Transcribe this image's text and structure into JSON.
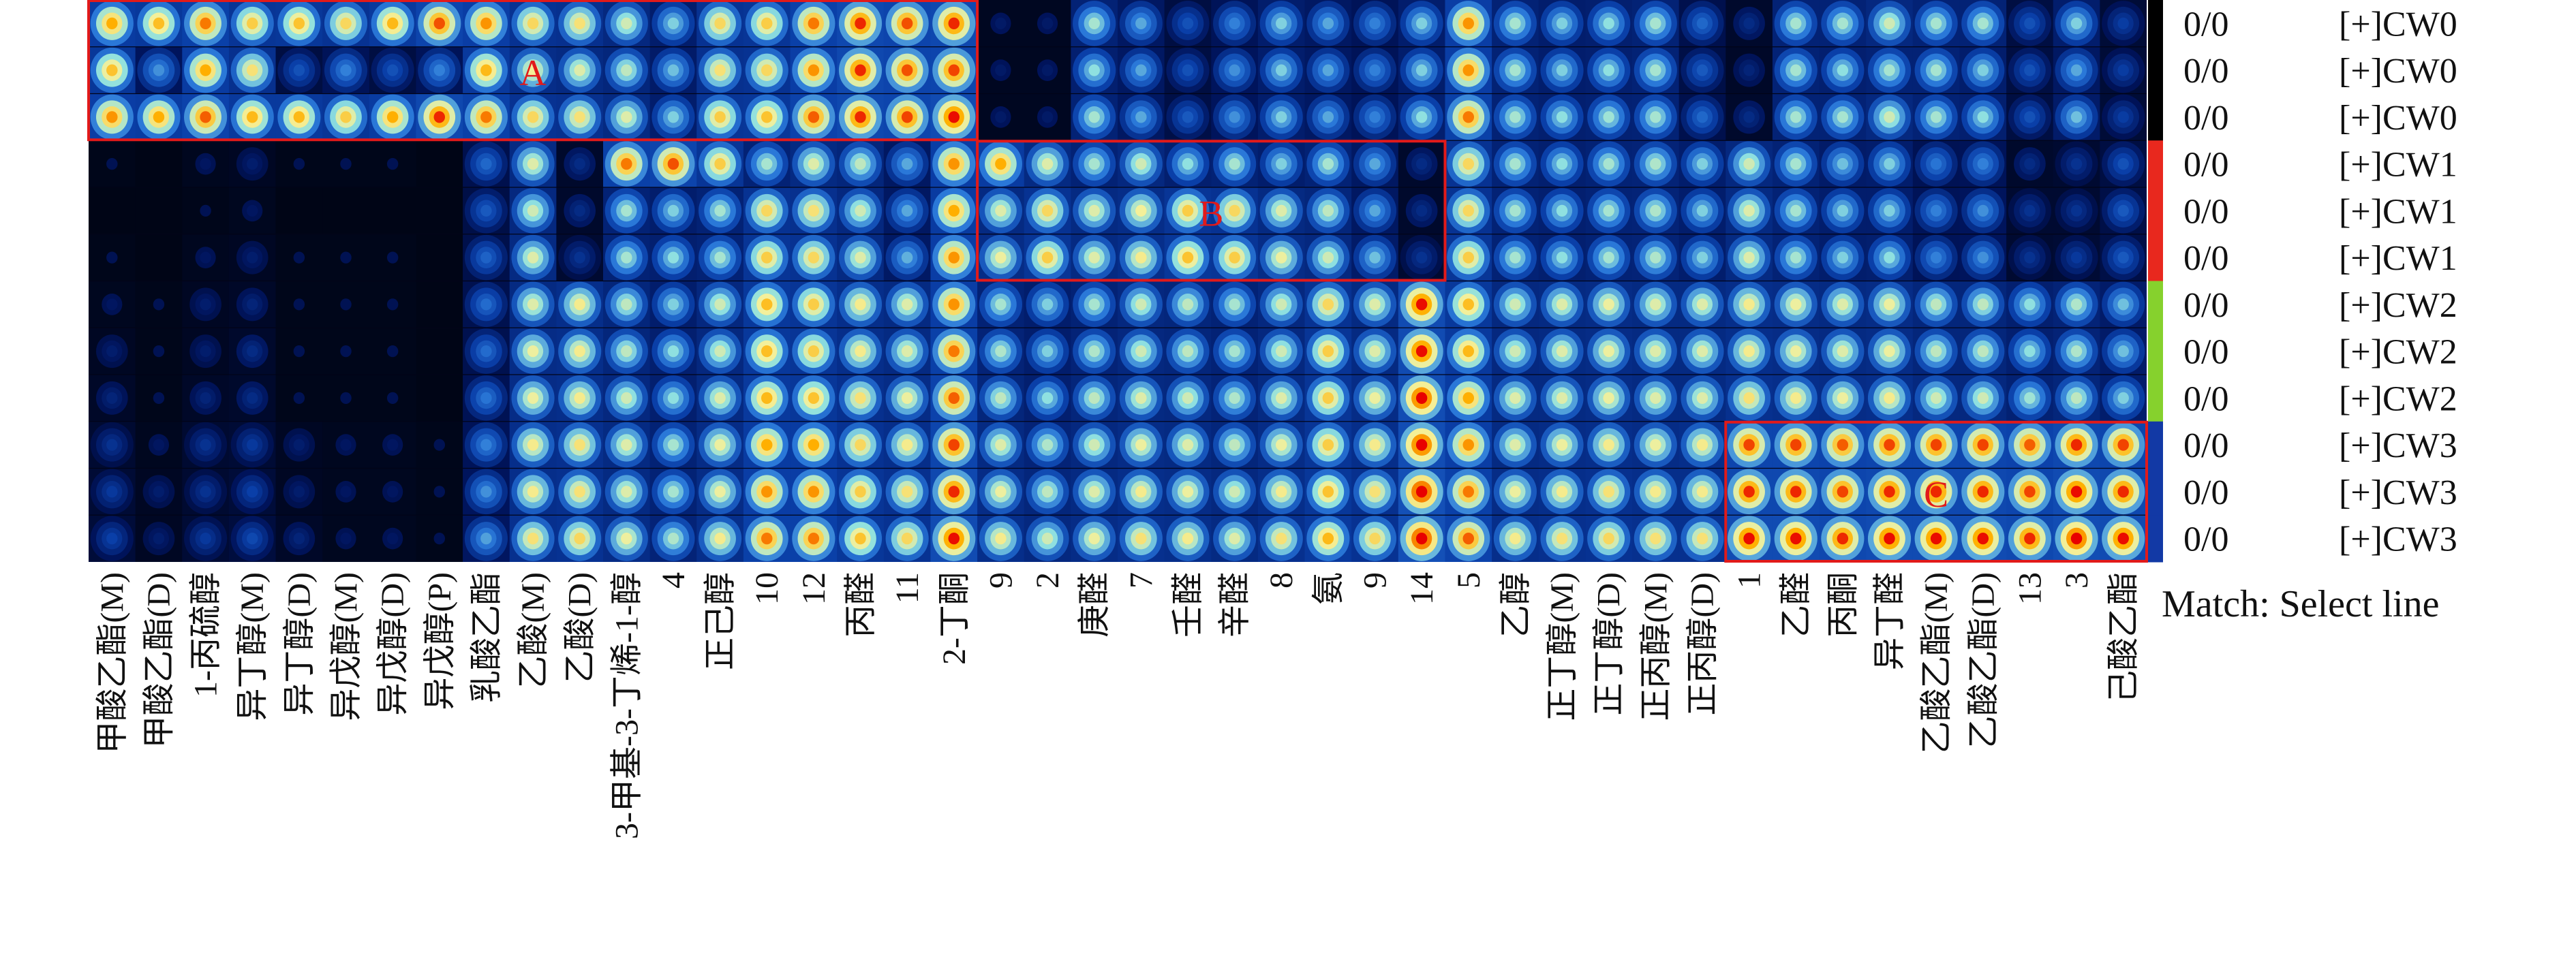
{
  "colors": {
    "background": "#000000",
    "colormap": [
      "#000000",
      "#00135a",
      "#0a3fa8",
      "#2a78d8",
      "#8fe0e0",
      "#f4f09a",
      "#ffb000",
      "#e80000"
    ],
    "highlight_box": "#e21a1a",
    "group_bars": [
      "#000000",
      "#e8281e",
      "#86d12d",
      "#1239a5"
    ]
  },
  "chart_data": {
    "type": "heatmap",
    "description_note": "GC-IMS gallery plot: rows = samples, columns = volatile compounds",
    "columns": [
      "甲酸乙酯(M)",
      "甲酸乙酯(D)",
      "1-丙硫醇",
      "异丁醇(M)",
      "异丁醇(D)",
      "异戊醇(M)",
      "异戊醇(D)",
      "异戊醇(P)",
      "乳酸乙酯",
      "乙酸(M)",
      "乙酸(D)",
      "3-甲基-3-丁烯-1-醇",
      "4",
      "正己醇",
      "10",
      "12",
      "丙醛",
      "11",
      "2-丁酮",
      "9",
      "2",
      "庚醛",
      "7",
      "壬醛",
      "辛醛",
      "8",
      "氨",
      "9",
      "14",
      "5",
      "乙醇",
      "正丁醇(M)",
      "正丁醇(D)",
      "正丙醇(M)",
      "正丙醇(D)",
      "1",
      "乙醛",
      "丙酮",
      "异丁醛",
      "乙酸乙酯(M)",
      "乙酸乙酯(D)",
      "13",
      "3",
      "己酸乙酯"
    ],
    "rows": [
      {
        "value": "0/0",
        "sample": "[+]CW0",
        "group": 0
      },
      {
        "value": "0/0",
        "sample": "[+]CW0",
        "group": 0
      },
      {
        "value": "0/0",
        "sample": "[+]CW0",
        "group": 0
      },
      {
        "value": "0/0",
        "sample": "[+]CW1",
        "group": 1
      },
      {
        "value": "0/0",
        "sample": "[+]CW1",
        "group": 1
      },
      {
        "value": "0/0",
        "sample": "[+]CW1",
        "group": 1
      },
      {
        "value": "0/0",
        "sample": "[+]CW2",
        "group": 2
      },
      {
        "value": "0/0",
        "sample": "[+]CW2",
        "group": 2
      },
      {
        "value": "0/0",
        "sample": "[+]CW2",
        "group": 2
      },
      {
        "value": "0/0",
        "sample": "[+]CW3",
        "group": 3
      },
      {
        "value": "0/0",
        "sample": "[+]CW3",
        "group": 3
      },
      {
        "value": "0/0",
        "sample": "[+]CW3",
        "group": 3
      }
    ],
    "intensity": [
      [
        0.78,
        0.75,
        0.82,
        0.72,
        0.74,
        0.7,
        0.76,
        0.85,
        0.8,
        0.7,
        0.68,
        0.6,
        0.5,
        0.7,
        0.72,
        0.82,
        0.88,
        0.85,
        0.88,
        0.15,
        0.15,
        0.55,
        0.45,
        0.3,
        0.4,
        0.5,
        0.45,
        0.4,
        0.5,
        0.8,
        0.55,
        0.5,
        0.52,
        0.55,
        0.35,
        0.2,
        0.55,
        0.55,
        0.6,
        0.55,
        0.55,
        0.3,
        0.5,
        0.25
      ],
      [
        0.74,
        0.42,
        0.78,
        0.68,
        0.3,
        0.4,
        0.3,
        0.4,
        0.76,
        0.65,
        0.62,
        0.58,
        0.48,
        0.68,
        0.7,
        0.8,
        0.88,
        0.85,
        0.86,
        0.15,
        0.15,
        0.52,
        0.45,
        0.3,
        0.42,
        0.5,
        0.45,
        0.4,
        0.5,
        0.8,
        0.55,
        0.5,
        0.52,
        0.55,
        0.32,
        0.18,
        0.55,
        0.52,
        0.55,
        0.55,
        0.5,
        0.3,
        0.45,
        0.25
      ],
      [
        0.8,
        0.78,
        0.84,
        0.76,
        0.76,
        0.72,
        0.78,
        0.88,
        0.82,
        0.7,
        0.68,
        0.62,
        0.5,
        0.72,
        0.74,
        0.84,
        0.88,
        0.86,
        0.9,
        0.15,
        0.15,
        0.55,
        0.45,
        0.32,
        0.42,
        0.5,
        0.45,
        0.4,
        0.52,
        0.82,
        0.55,
        0.52,
        0.54,
        0.55,
        0.35,
        0.2,
        0.55,
        0.55,
        0.6,
        0.55,
        0.52,
        0.3,
        0.48,
        0.25
      ],
      [
        0.12,
        0.1,
        0.14,
        0.16,
        0.12,
        0.12,
        0.12,
        0.1,
        0.35,
        0.62,
        0.2,
        0.82,
        0.85,
        0.72,
        0.55,
        0.62,
        0.58,
        0.45,
        0.8,
        0.78,
        0.62,
        0.55,
        0.6,
        0.52,
        0.55,
        0.5,
        0.55,
        0.45,
        0.2,
        0.7,
        0.55,
        0.52,
        0.55,
        0.56,
        0.5,
        0.6,
        0.55,
        0.48,
        0.5,
        0.38,
        0.4,
        0.2,
        0.22,
        0.3
      ],
      [
        0.1,
        0.1,
        0.12,
        0.14,
        0.1,
        0.1,
        0.1,
        0.1,
        0.32,
        0.6,
        0.2,
        0.55,
        0.5,
        0.55,
        0.7,
        0.68,
        0.6,
        0.45,
        0.78,
        0.62,
        0.7,
        0.62,
        0.65,
        0.72,
        0.7,
        0.62,
        0.58,
        0.45,
        0.2,
        0.7,
        0.55,
        0.52,
        0.55,
        0.56,
        0.5,
        0.62,
        0.55,
        0.5,
        0.5,
        0.4,
        0.42,
        0.22,
        0.22,
        0.32
      ],
      [
        0.12,
        0.1,
        0.14,
        0.16,
        0.12,
        0.12,
        0.12,
        0.1,
        0.34,
        0.62,
        0.22,
        0.55,
        0.52,
        0.55,
        0.72,
        0.7,
        0.62,
        0.46,
        0.8,
        0.64,
        0.72,
        0.62,
        0.66,
        0.74,
        0.72,
        0.64,
        0.6,
        0.48,
        0.22,
        0.72,
        0.55,
        0.52,
        0.55,
        0.56,
        0.5,
        0.62,
        0.55,
        0.5,
        0.52,
        0.4,
        0.42,
        0.22,
        0.24,
        0.32
      ],
      [
        0.14,
        0.12,
        0.16,
        0.18,
        0.12,
        0.12,
        0.12,
        0.1,
        0.36,
        0.62,
        0.66,
        0.58,
        0.5,
        0.6,
        0.75,
        0.72,
        0.66,
        0.62,
        0.8,
        0.55,
        0.5,
        0.55,
        0.6,
        0.58,
        0.55,
        0.6,
        0.7,
        0.62,
        0.9,
        0.75,
        0.6,
        0.62,
        0.64,
        0.62,
        0.62,
        0.66,
        0.64,
        0.62,
        0.64,
        0.58,
        0.58,
        0.52,
        0.56,
        0.48
      ],
      [
        0.16,
        0.12,
        0.16,
        0.2,
        0.12,
        0.12,
        0.12,
        0.1,
        0.36,
        0.64,
        0.66,
        0.58,
        0.52,
        0.6,
        0.75,
        0.72,
        0.66,
        0.62,
        0.82,
        0.56,
        0.5,
        0.56,
        0.6,
        0.58,
        0.55,
        0.6,
        0.72,
        0.62,
        0.9,
        0.76,
        0.6,
        0.62,
        0.64,
        0.62,
        0.62,
        0.66,
        0.64,
        0.62,
        0.64,
        0.58,
        0.58,
        0.52,
        0.56,
        0.48
      ],
      [
        0.18,
        0.12,
        0.18,
        0.2,
        0.12,
        0.12,
        0.12,
        0.1,
        0.38,
        0.64,
        0.66,
        0.6,
        0.52,
        0.62,
        0.76,
        0.74,
        0.68,
        0.64,
        0.84,
        0.58,
        0.52,
        0.58,
        0.62,
        0.6,
        0.56,
        0.62,
        0.72,
        0.64,
        0.92,
        0.78,
        0.62,
        0.62,
        0.64,
        0.62,
        0.62,
        0.68,
        0.66,
        0.64,
        0.66,
        0.6,
        0.6,
        0.54,
        0.58,
        0.5
      ],
      [
        0.22,
        0.14,
        0.22,
        0.24,
        0.16,
        0.14,
        0.14,
        0.12,
        0.4,
        0.66,
        0.68,
        0.62,
        0.55,
        0.64,
        0.78,
        0.78,
        0.7,
        0.66,
        0.86,
        0.62,
        0.56,
        0.6,
        0.64,
        0.62,
        0.58,
        0.64,
        0.72,
        0.66,
        0.92,
        0.8,
        0.62,
        0.64,
        0.66,
        0.64,
        0.66,
        0.86,
        0.86,
        0.84,
        0.86,
        0.86,
        0.86,
        0.84,
        0.88,
        0.86
      ],
      [
        0.24,
        0.16,
        0.22,
        0.26,
        0.16,
        0.14,
        0.14,
        0.12,
        0.42,
        0.66,
        0.68,
        0.62,
        0.55,
        0.64,
        0.8,
        0.8,
        0.72,
        0.68,
        0.88,
        0.64,
        0.58,
        0.62,
        0.66,
        0.64,
        0.6,
        0.66,
        0.74,
        0.68,
        0.94,
        0.82,
        0.64,
        0.66,
        0.68,
        0.66,
        0.66,
        0.88,
        0.88,
        0.86,
        0.88,
        0.88,
        0.88,
        0.86,
        0.9,
        0.88
      ],
      [
        0.26,
        0.16,
        0.24,
        0.28,
        0.18,
        0.14,
        0.14,
        0.12,
        0.44,
        0.68,
        0.7,
        0.64,
        0.56,
        0.66,
        0.82,
        0.82,
        0.74,
        0.7,
        0.9,
        0.66,
        0.6,
        0.64,
        0.68,
        0.66,
        0.62,
        0.68,
        0.76,
        0.7,
        0.94,
        0.84,
        0.66,
        0.68,
        0.7,
        0.68,
        0.68,
        0.9,
        0.9,
        0.88,
        0.9,
        0.9,
        0.9,
        0.88,
        0.92,
        0.9
      ]
    ],
    "annotations": [
      {
        "label": "A",
        "rows": [
          0,
          2
        ],
        "columns": [
          0,
          19
        ]
      },
      {
        "label": "B",
        "rows": [
          3,
          5
        ],
        "columns": [
          19,
          29
        ]
      },
      {
        "label": "C",
        "rows": [
          9,
          11
        ],
        "columns": [
          35,
          44
        ]
      }
    ],
    "footer_label": "Match: Select line"
  }
}
